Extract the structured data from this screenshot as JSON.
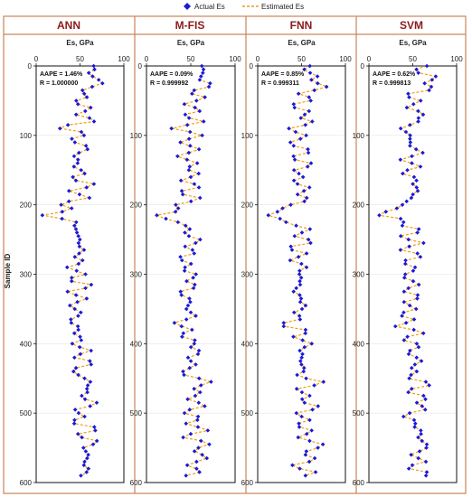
{
  "legend": {
    "actual_label": "Actual Es",
    "estimated_label": "Estimated Es"
  },
  "y_axis_label": "Sample ID",
  "colors": {
    "actual": "#1a1ad6",
    "estimated": "#f39c12",
    "frame": "#c8865a",
    "title": "#8b1a1a"
  },
  "chart_data": [
    {
      "type": "line",
      "title": "ANN",
      "xlabel": "Es, GPa",
      "xlim": [
        0,
        100
      ],
      "ylim": [
        0,
        600
      ],
      "y_inverted": true,
      "xticks": [
        0,
        50,
        100
      ],
      "yticks": [
        0,
        100,
        200,
        300,
        400,
        500,
        600
      ],
      "annotation": {
        "aape": "AAPE = 1.46%",
        "r": "R = 1.000000"
      },
      "series": [
        {
          "name": "Actual Es",
          "marker": "diamond"
        },
        {
          "name": "Estimated Es",
          "style": "dashed"
        }
      ],
      "profile": [
        [
          0,
          62
        ],
        [
          10,
          60
        ],
        [
          25,
          72
        ],
        [
          40,
          55
        ],
        [
          60,
          50
        ],
        [
          80,
          58
        ],
        [
          90,
          35
        ],
        [
          100,
          55
        ],
        [
          110,
          40
        ],
        [
          120,
          58
        ],
        [
          130,
          43
        ],
        [
          140,
          50
        ],
        [
          150,
          52
        ],
        [
          160,
          44
        ],
        [
          170,
          55
        ],
        [
          180,
          48
        ],
        [
          190,
          53
        ],
        [
          200,
          38
        ],
        [
          208,
          30
        ],
        [
          212,
          20
        ],
        [
          215,
          12
        ],
        [
          218,
          22
        ],
        [
          225,
          38
        ],
        [
          235,
          50
        ],
        [
          245,
          48
        ],
        [
          255,
          54
        ],
        [
          265,
          45
        ],
        [
          275,
          50
        ],
        [
          285,
          42
        ],
        [
          295,
          52
        ],
        [
          305,
          44
        ],
        [
          315,
          55
        ],
        [
          325,
          40
        ],
        [
          335,
          52
        ],
        [
          345,
          45
        ],
        [
          355,
          50
        ],
        [
          365,
          42
        ],
        [
          375,
          38
        ],
        [
          385,
          52
        ],
        [
          395,
          45
        ],
        [
          405,
          58
        ],
        [
          415,
          48
        ],
        [
          425,
          55
        ],
        [
          435,
          50
        ],
        [
          445,
          45
        ],
        [
          455,
          68
        ],
        [
          465,
          55
        ],
        [
          475,
          52
        ],
        [
          485,
          62
        ],
        [
          495,
          55
        ],
        [
          505,
          48
        ],
        [
          515,
          52
        ],
        [
          525,
          60
        ],
        [
          535,
          50
        ],
        [
          545,
          70
        ],
        [
          555,
          55
        ],
        [
          565,
          62
        ],
        [
          575,
          50
        ],
        [
          585,
          57
        ],
        [
          590,
          55
        ]
      ]
    },
    {
      "type": "line",
      "title": "M-FIS",
      "xlabel": "Es, GPa",
      "xlim": [
        0,
        100
      ],
      "ylim": [
        0,
        600
      ],
      "y_inverted": true,
      "xticks": [
        0,
        50,
        100
      ],
      "yticks": [
        0,
        100,
        200,
        300,
        400,
        500,
        600
      ],
      "annotation": {
        "aape": "AAPE = 0.09%",
        "r": "R = 0.999992"
      },
      "series": [
        {
          "name": "Actual Es",
          "marker": "diamond"
        },
        {
          "name": "Estimated Es",
          "style": "dashed"
        }
      ],
      "profile": [
        [
          0,
          62
        ],
        [
          10,
          60
        ],
        [
          25,
          72
        ],
        [
          40,
          55
        ],
        [
          60,
          50
        ],
        [
          80,
          58
        ],
        [
          90,
          35
        ],
        [
          100,
          55
        ],
        [
          110,
          40
        ],
        [
          120,
          58
        ],
        [
          130,
          43
        ],
        [
          140,
          50
        ],
        [
          150,
          52
        ],
        [
          160,
          44
        ],
        [
          170,
          55
        ],
        [
          180,
          48
        ],
        [
          190,
          53
        ],
        [
          200,
          38
        ],
        [
          208,
          30
        ],
        [
          212,
          20
        ],
        [
          215,
          12
        ],
        [
          218,
          22
        ],
        [
          225,
          38
        ],
        [
          235,
          50
        ],
        [
          245,
          48
        ],
        [
          255,
          54
        ],
        [
          265,
          45
        ],
        [
          275,
          50
        ],
        [
          285,
          42
        ],
        [
          295,
          52
        ],
        [
          305,
          44
        ],
        [
          315,
          55
        ],
        [
          325,
          40
        ],
        [
          335,
          52
        ],
        [
          345,
          45
        ],
        [
          355,
          50
        ],
        [
          365,
          42
        ],
        [
          375,
          38
        ],
        [
          385,
          52
        ],
        [
          395,
          45
        ],
        [
          405,
          58
        ],
        [
          415,
          48
        ],
        [
          425,
          55
        ],
        [
          435,
          50
        ],
        [
          445,
          45
        ],
        [
          455,
          68
        ],
        [
          465,
          55
        ],
        [
          475,
          52
        ],
        [
          485,
          62
        ],
        [
          495,
          55
        ],
        [
          505,
          48
        ],
        [
          515,
          52
        ],
        [
          525,
          60
        ],
        [
          535,
          50
        ],
        [
          545,
          70
        ],
        [
          555,
          55
        ],
        [
          565,
          62
        ],
        [
          575,
          50
        ],
        [
          585,
          57
        ],
        [
          590,
          55
        ]
      ]
    },
    {
      "type": "line",
      "title": "FNN",
      "xlabel": "Es, GPa",
      "xlim": [
        0,
        100
      ],
      "ylim": [
        0,
        600
      ],
      "y_inverted": true,
      "xticks": [
        0,
        50,
        100
      ],
      "yticks": [
        0,
        100,
        200,
        300,
        400,
        500,
        600
      ],
      "annotation": {
        "aape": "AAPE = 0.85%",
        "r": "R = 0.999311"
      },
      "series": [
        {
          "name": "Actual Es",
          "marker": "diamond"
        },
        {
          "name": "Estimated Es",
          "style": "dashed"
        }
      ],
      "profile": [
        [
          0,
          62
        ],
        [
          10,
          60
        ],
        [
          25,
          72
        ],
        [
          40,
          55
        ],
        [
          60,
          50
        ],
        [
          80,
          58
        ],
        [
          90,
          35
        ],
        [
          100,
          55
        ],
        [
          110,
          40
        ],
        [
          120,
          58
        ],
        [
          130,
          43
        ],
        [
          140,
          50
        ],
        [
          150,
          52
        ],
        [
          160,
          44
        ],
        [
          170,
          55
        ],
        [
          180,
          48
        ],
        [
          190,
          53
        ],
        [
          200,
          38
        ],
        [
          208,
          30
        ],
        [
          212,
          20
        ],
        [
          215,
          12
        ],
        [
          218,
          22
        ],
        [
          225,
          38
        ],
        [
          235,
          50
        ],
        [
          245,
          48
        ],
        [
          255,
          54
        ],
        [
          265,
          45
        ],
        [
          275,
          50
        ],
        [
          285,
          42
        ],
        [
          295,
          52
        ],
        [
          305,
          44
        ],
        [
          315,
          55
        ],
        [
          325,
          40
        ],
        [
          335,
          52
        ],
        [
          345,
          45
        ],
        [
          355,
          50
        ],
        [
          365,
          42
        ],
        [
          375,
          38
        ],
        [
          385,
          52
        ],
        [
          395,
          45
        ],
        [
          405,
          58
        ],
        [
          415,
          48
        ],
        [
          425,
          55
        ],
        [
          435,
          50
        ],
        [
          445,
          45
        ],
        [
          455,
          68
        ],
        [
          465,
          55
        ],
        [
          475,
          52
        ],
        [
          485,
          62
        ],
        [
          495,
          55
        ],
        [
          505,
          48
        ],
        [
          515,
          52
        ],
        [
          525,
          60
        ],
        [
          535,
          50
        ],
        [
          545,
          70
        ],
        [
          555,
          55
        ],
        [
          565,
          62
        ],
        [
          575,
          50
        ],
        [
          585,
          57
        ],
        [
          590,
          55
        ]
      ]
    },
    {
      "type": "line",
      "title": "SVM",
      "xlabel": "Es, GPa",
      "xlim": [
        0,
        100
      ],
      "ylim": [
        0,
        600
      ],
      "y_inverted": true,
      "xticks": [
        0,
        50,
        100
      ],
      "yticks": [
        0,
        100,
        200,
        300,
        400,
        500,
        600
      ],
      "annotation": {
        "aape": "AAPE = 0.62%",
        "r": "R = 0.999813"
      },
      "series": [
        {
          "name": "Actual Es",
          "marker": "diamond"
        },
        {
          "name": "Estimated Es",
          "style": "dashed"
        }
      ],
      "profile": [
        [
          0,
          62
        ],
        [
          10,
          60
        ],
        [
          25,
          72
        ],
        [
          40,
          55
        ],
        [
          60,
          50
        ],
        [
          80,
          58
        ],
        [
          90,
          35
        ],
        [
          100,
          55
        ],
        [
          110,
          40
        ],
        [
          120,
          58
        ],
        [
          130,
          43
        ],
        [
          140,
          50
        ],
        [
          150,
          52
        ],
        [
          160,
          44
        ],
        [
          170,
          55
        ],
        [
          180,
          48
        ],
        [
          190,
          53
        ],
        [
          200,
          38
        ],
        [
          208,
          30
        ],
        [
          212,
          20
        ],
        [
          215,
          12
        ],
        [
          218,
          22
        ],
        [
          225,
          38
        ],
        [
          235,
          50
        ],
        [
          245,
          48
        ],
        [
          255,
          54
        ],
        [
          265,
          45
        ],
        [
          275,
          50
        ],
        [
          285,
          42
        ],
        [
          295,
          52
        ],
        [
          305,
          44
        ],
        [
          315,
          55
        ],
        [
          325,
          40
        ],
        [
          335,
          52
        ],
        [
          345,
          45
        ],
        [
          355,
          50
        ],
        [
          365,
          42
        ],
        [
          375,
          38
        ],
        [
          385,
          52
        ],
        [
          395,
          45
        ],
        [
          405,
          58
        ],
        [
          415,
          48
        ],
        [
          425,
          55
        ],
        [
          435,
          50
        ],
        [
          445,
          45
        ],
        [
          455,
          68
        ],
        [
          465,
          55
        ],
        [
          475,
          52
        ],
        [
          485,
          62
        ],
        [
          495,
          55
        ],
        [
          505,
          48
        ],
        [
          515,
          52
        ],
        [
          525,
          60
        ],
        [
          535,
          50
        ],
        [
          545,
          70
        ],
        [
          555,
          55
        ],
        [
          565,
          62
        ],
        [
          575,
          50
        ],
        [
          585,
          57
        ],
        [
          590,
          55
        ]
      ]
    }
  ]
}
